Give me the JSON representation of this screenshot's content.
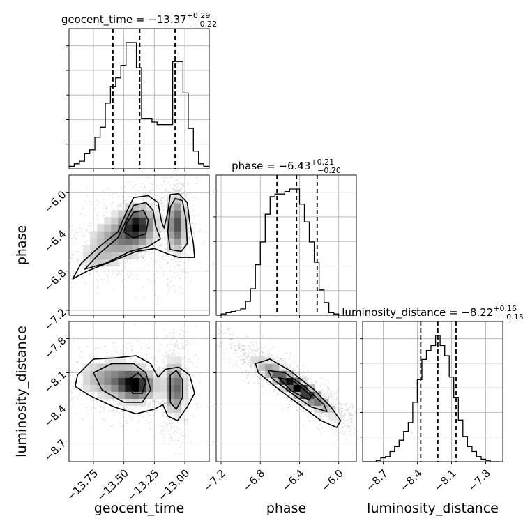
{
  "chart_data": {
    "type": "corner",
    "grid": true,
    "parameters": [
      {
        "name": "geocent_time",
        "axis_label": "geocent_time",
        "title_main": "geocent_time = −13.37",
        "title_plus": "+0.29",
        "title_minus": "−0.22",
        "median": -13.37,
        "err_plus": 0.29,
        "err_minus": 0.22,
        "quantiles": [
          -13.59,
          -13.37,
          -13.08
        ],
        "range": [
          -13.95,
          -12.8
        ],
        "ticks": [
          -13.75,
          -13.5,
          -13.25,
          -13.0
        ],
        "tick_labels": [
          "−13.75",
          "−13.50",
          "−13.25",
          "−13.00"
        ]
      },
      {
        "name": "phase",
        "axis_label": "phase",
        "title_main": "phase = −6.43",
        "title_plus": "+0.21",
        "title_minus": "−0.20",
        "median": -6.43,
        "err_plus": 0.21,
        "err_minus": 0.2,
        "quantiles": [
          -6.63,
          -6.43,
          -6.22
        ],
        "range": [
          -7.25,
          -5.82
        ],
        "ticks": [
          -7.2,
          -6.8,
          -6.4,
          -6.0
        ],
        "tick_labels": [
          "−7.2",
          "−6.8",
          "−6.4",
          "−6.0"
        ]
      },
      {
        "name": "luminosity_distance",
        "axis_label": "luminosity_distance",
        "title_main": "luminosity_distance = −8.22",
        "title_plus": "+0.16",
        "title_minus": "−0.15",
        "median": -8.22,
        "err_plus": 0.16,
        "err_minus": 0.15,
        "quantiles": [
          -8.37,
          -8.22,
          -8.06
        ],
        "range": [
          -8.88,
          -7.65
        ],
        "ticks": [
          -8.7,
          -8.4,
          -8.1,
          -7.8
        ],
        "tick_labels": [
          "−8.7",
          "−8.4",
          "−8.1",
          "−7.8"
        ]
      }
    ],
    "histograms": [
      {
        "param": "geocent_time",
        "bin_edges": [
          -13.95,
          -13.9075,
          -13.865,
          -13.8225,
          -13.78,
          -13.7375,
          -13.695,
          -13.6525,
          -13.61,
          -13.5675,
          -13.525,
          -13.4825,
          -13.44,
          -13.3975,
          -13.355,
          -13.3125,
          -13.27,
          -13.2275,
          -13.185,
          -13.1425,
          -13.1,
          -13.0575,
          -13.015,
          -12.9725,
          -12.93,
          -12.8875,
          -12.845,
          -12.8
        ],
        "counts": [
          2,
          4,
          6,
          12,
          15,
          25,
          33,
          52,
          65,
          72,
          82,
          100,
          100,
          80,
          40,
          40,
          37,
          35,
          35,
          35,
          85,
          85,
          60,
          32,
          14,
          4,
          2
        ]
      },
      {
        "param": "phase",
        "bin_edges": [
          -7.25,
          -7.2,
          -7.15,
          -7.1,
          -7.05,
          -7.0,
          -6.95,
          -6.9,
          -6.85,
          -6.8,
          -6.75,
          -6.7,
          -6.65,
          -6.6,
          -6.55,
          -6.5,
          -6.45,
          -6.4,
          -6.35,
          -6.3,
          -6.25,
          -6.2,
          -6.15,
          -6.1,
          -6.05,
          -6.0,
          -5.95,
          -5.9,
          -5.85
        ],
        "counts": [
          0,
          1,
          2,
          3,
          4,
          5,
          11,
          21,
          40,
          58,
          80,
          94,
          96,
          96,
          98,
          100,
          100,
          88,
          74,
          58,
          42,
          20,
          10,
          2,
          1,
          0,
          0,
          0
        ]
      },
      {
        "param": "luminosity_distance",
        "bin_edges": [
          -8.88,
          -8.84,
          -8.8,
          -8.76,
          -8.72,
          -8.68,
          -8.64,
          -8.6,
          -8.56,
          -8.52,
          -8.48,
          -8.44,
          -8.4,
          -8.36,
          -8.32,
          -8.28,
          -8.24,
          -8.2,
          -8.16,
          -8.12,
          -8.08,
          -8.04,
          -8.0,
          -7.96,
          -7.92,
          -7.88,
          -7.84,
          -7.8,
          -7.76,
          -7.72,
          -7.68
        ],
        "counts": [
          0,
          0,
          0,
          1,
          3,
          4,
          8,
          12,
          17,
          24,
          31,
          47,
          65,
          81,
          88,
          92,
          100,
          92,
          84,
          67,
          51,
          33,
          20,
          12,
          8,
          4,
          2,
          1,
          0,
          0
        ]
      }
    ],
    "joint": [
      {
        "x": "geocent_time",
        "y": "phase",
        "blobs": [
          {
            "cx": -13.39,
            "cy": -6.32,
            "sx": 0.09,
            "sy": 0.12,
            "w": 1.0
          },
          {
            "cx": -13.55,
            "cy": -6.48,
            "sx": 0.14,
            "sy": 0.13,
            "w": 0.55
          },
          {
            "cx": -13.07,
            "cy": -6.32,
            "sx": 0.05,
            "sy": 0.18,
            "w": 0.85
          },
          {
            "cx": -13.72,
            "cy": -6.68,
            "sx": 0.09,
            "sy": 0.08,
            "w": 0.25
          }
        ],
        "contours": [
          [
            [
              -13.92,
              -6.88
            ],
            [
              -13.85,
              -6.72
            ],
            [
              -13.7,
              -6.55
            ],
            [
              -13.55,
              -6.4
            ],
            [
              -13.48,
              -6.2
            ],
            [
              -13.42,
              -6.05
            ],
            [
              -13.3,
              -6.03
            ],
            [
              -13.22,
              -6.1
            ],
            [
              -13.19,
              -6.3
            ],
            [
              -13.17,
              -6.36
            ],
            [
              -13.14,
              -6.2
            ],
            [
              -13.12,
              -6.02
            ],
            [
              -13.05,
              -6.01
            ],
            [
              -12.98,
              -6.1
            ],
            [
              -12.96,
              -6.3
            ],
            [
              -12.93,
              -6.52
            ],
            [
              -12.92,
              -6.66
            ],
            [
              -13.05,
              -6.66
            ],
            [
              -13.15,
              -6.62
            ],
            [
              -13.25,
              -6.57
            ],
            [
              -13.4,
              -6.6
            ],
            [
              -13.6,
              -6.7
            ],
            [
              -13.8,
              -6.8
            ]
          ],
          [
            [
              -13.82,
              -6.78
            ],
            [
              -13.7,
              -6.62
            ],
            [
              -13.55,
              -6.46
            ],
            [
              -13.48,
              -6.28
            ],
            [
              -13.42,
              -6.13
            ],
            [
              -13.32,
              -6.1
            ],
            [
              -13.26,
              -6.18
            ],
            [
              -13.24,
              -6.34
            ],
            [
              -13.2,
              -6.47
            ],
            [
              -13.3,
              -6.55
            ],
            [
              -13.45,
              -6.6
            ],
            [
              -13.65,
              -6.72
            ]
          ],
          [
            [
              -13.48,
              -6.32
            ],
            [
              -13.42,
              -6.2
            ],
            [
              -13.34,
              -6.18
            ],
            [
              -13.3,
              -6.28
            ],
            [
              -13.32,
              -6.42
            ],
            [
              -13.42,
              -6.46
            ],
            [
              -13.5,
              -6.4
            ]
          ],
          [
            [
              -13.12,
              -6.15
            ],
            [
              -13.08,
              -6.06
            ],
            [
              -13.02,
              -6.08
            ],
            [
              -12.99,
              -6.28
            ],
            [
              -12.98,
              -6.52
            ],
            [
              -13.03,
              -6.6
            ],
            [
              -13.12,
              -6.58
            ],
            [
              -13.14,
              -6.4
            ]
          ]
        ]
      },
      {
        "x": "geocent_time",
        "y": "luminosity_distance",
        "blobs": [
          {
            "cx": -13.4,
            "cy": -8.21,
            "sx": 0.1,
            "sy": 0.08,
            "w": 1.0
          },
          {
            "cx": -13.6,
            "cy": -8.15,
            "sx": 0.16,
            "sy": 0.1,
            "w": 0.55
          },
          {
            "cx": -13.08,
            "cy": -8.23,
            "sx": 0.05,
            "sy": 0.14,
            "w": 0.8
          }
        ],
        "contours": [
          [
            [
              -13.88,
              -8.12
            ],
            [
              -13.75,
              -7.98
            ],
            [
              -13.58,
              -7.97
            ],
            [
              -13.4,
              -7.95
            ],
            [
              -13.28,
              -8.02
            ],
            [
              -13.22,
              -8.14
            ],
            [
              -13.16,
              -8.07
            ],
            [
              -13.05,
              -8.05
            ],
            [
              -12.96,
              -8.12
            ],
            [
              -12.92,
              -8.28
            ],
            [
              -12.98,
              -8.4
            ],
            [
              -13.06,
              -8.52
            ],
            [
              -13.14,
              -8.48
            ],
            [
              -13.18,
              -8.38
            ],
            [
              -13.25,
              -8.42
            ],
            [
              -13.4,
              -8.46
            ],
            [
              -13.58,
              -8.4
            ],
            [
              -13.78,
              -8.3
            ],
            [
              -13.9,
              -8.22
            ]
          ],
          [
            [
              -13.75,
              -8.1
            ],
            [
              -13.6,
              -8.02
            ],
            [
              -13.42,
              -8.02
            ],
            [
              -13.32,
              -8.1
            ],
            [
              -13.28,
              -8.25
            ],
            [
              -13.35,
              -8.36
            ],
            [
              -13.5,
              -8.36
            ],
            [
              -13.68,
              -8.25
            ]
          ],
          [
            [
              -13.45,
              -8.15
            ],
            [
              -13.38,
              -8.1
            ],
            [
              -13.32,
              -8.18
            ],
            [
              -13.35,
              -8.28
            ],
            [
              -13.43,
              -8.28
            ]
          ],
          [
            [
              -13.12,
              -8.12
            ],
            [
              -13.07,
              -8.08
            ],
            [
              -13.02,
              -8.16
            ],
            [
              -13.02,
              -8.32
            ],
            [
              -13.07,
              -8.42
            ],
            [
              -13.12,
              -8.36
            ]
          ]
        ]
      },
      {
        "x": "phase",
        "y": "luminosity_distance",
        "blobs": [
          {
            "cx": -6.44,
            "cy": -8.22,
            "sx": 0.22,
            "sy": 0.13,
            "rho": -0.92,
            "w": 1.0
          }
        ],
        "contours": [
          [
            [
              -6.85,
              -8.02
            ],
            [
              -6.7,
              -7.98
            ],
            [
              -6.5,
              -8.08
            ],
            [
              -6.25,
              -8.25
            ],
            [
              -6.08,
              -8.4
            ],
            [
              -5.98,
              -8.52
            ],
            [
              -6.02,
              -8.58
            ],
            [
              -6.18,
              -8.52
            ],
            [
              -6.4,
              -8.38
            ],
            [
              -6.62,
              -8.24
            ],
            [
              -6.82,
              -8.1
            ]
          ],
          [
            [
              -6.72,
              -8.08
            ],
            [
              -6.55,
              -8.1
            ],
            [
              -6.35,
              -8.22
            ],
            [
              -6.15,
              -8.38
            ],
            [
              -6.12,
              -8.44
            ],
            [
              -6.28,
              -8.4
            ],
            [
              -6.48,
              -8.28
            ],
            [
              -6.68,
              -8.15
            ]
          ],
          [
            [
              -6.62,
              -8.14
            ],
            [
              -6.45,
              -8.18
            ],
            [
              -6.28,
              -8.3
            ],
            [
              -6.3,
              -8.34
            ],
            [
              -6.48,
              -8.26
            ]
          ]
        ]
      }
    ]
  }
}
